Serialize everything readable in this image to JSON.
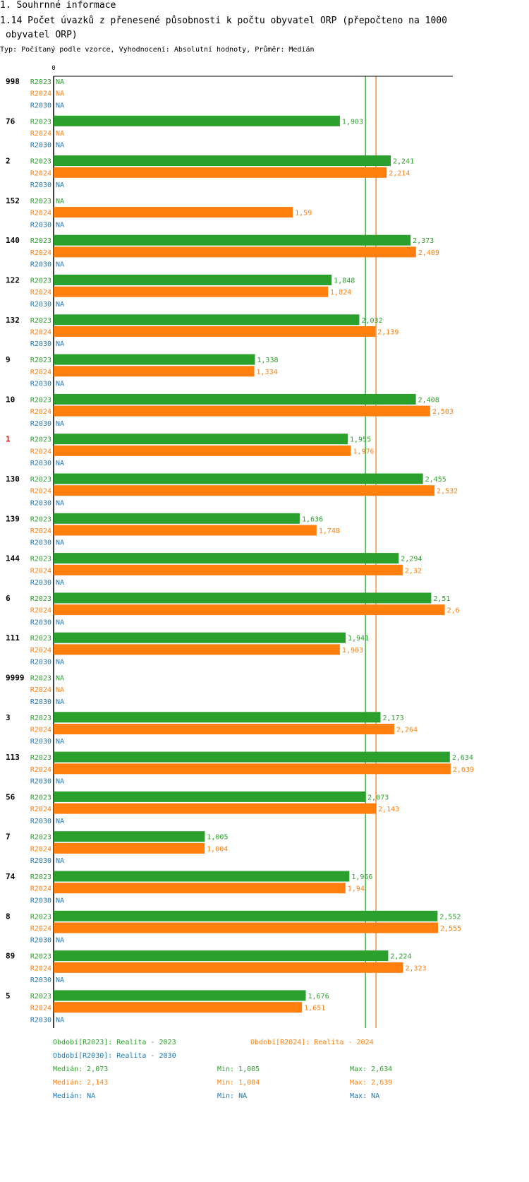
{
  "header": {
    "section_title": "1. Souhrnné informace",
    "chart_title_line1": "1.14 Počet úvazků z přenesené působnosti k počtu obyvatel ORP (přepočteno na 1000",
    "chart_title_line2": "obyvatel ORP)",
    "subtitle": "Typ: Počítaný podle vzorce, Vyhodnocení: Absolutní hodnoty, Průměr: Medián"
  },
  "colors": {
    "R2023": "#2ca02c",
    "R2024": "#ff7f0e",
    "R2030": "#1f77b4",
    "highlight_group": "#ff0000",
    "axis": "#000000"
  },
  "chart_data": {
    "type": "bar",
    "orientation": "horizontal",
    "x_tick_label": "0",
    "xlim": [
      0,
      2.85
    ],
    "na_label": "NA",
    "series_names": [
      "R2023",
      "R2024",
      "R2030"
    ],
    "highlighted_group": "1",
    "reference_lines": [
      {
        "series": "R2023",
        "label": "Medián",
        "value": 2.073
      },
      {
        "series": "R2024",
        "label": "Medián",
        "value": 2.143
      }
    ],
    "groups": [
      {
        "label": "998",
        "values": [
          null,
          null,
          null
        ],
        "labels": [
          "NA",
          "NA",
          "NA"
        ]
      },
      {
        "label": "76",
        "values": [
          1.903,
          null,
          null
        ],
        "labels": [
          "1,903",
          "NA",
          "NA"
        ]
      },
      {
        "label": "2",
        "values": [
          2.241,
          2.214,
          null
        ],
        "labels": [
          "2,241",
          "2,214",
          "NA"
        ]
      },
      {
        "label": "152",
        "values": [
          null,
          1.59,
          null
        ],
        "labels": [
          "NA",
          "1,59",
          "NA"
        ]
      },
      {
        "label": "140",
        "values": [
          2.373,
          2.409,
          null
        ],
        "labels": [
          "2,373",
          "2,409",
          "NA"
        ]
      },
      {
        "label": "122",
        "values": [
          1.848,
          1.824,
          null
        ],
        "labels": [
          "1,848",
          "1,824",
          "NA"
        ]
      },
      {
        "label": "132",
        "values": [
          2.032,
          2.139,
          null
        ],
        "labels": [
          "2,032",
          "2,139",
          "NA"
        ]
      },
      {
        "label": "9",
        "values": [
          1.338,
          1.334,
          null
        ],
        "labels": [
          "1,338",
          "1,334",
          "NA"
        ]
      },
      {
        "label": "10",
        "values": [
          2.408,
          2.503,
          null
        ],
        "labels": [
          "2,408",
          "2,503",
          "NA"
        ]
      },
      {
        "label": "1",
        "values": [
          1.955,
          1.976,
          null
        ],
        "labels": [
          "1,955",
          "1,976",
          "NA"
        ]
      },
      {
        "label": "130",
        "values": [
          2.455,
          2.532,
          null
        ],
        "labels": [
          "2,455",
          "2,532",
          "NA"
        ]
      },
      {
        "label": "139",
        "values": [
          1.636,
          1.748,
          null
        ],
        "labels": [
          "1,636",
          "1,748",
          "NA"
        ]
      },
      {
        "label": "144",
        "values": [
          2.294,
          2.32,
          null
        ],
        "labels": [
          "2,294",
          "2,32",
          "NA"
        ]
      },
      {
        "label": "6",
        "values": [
          2.51,
          2.6,
          null
        ],
        "labels": [
          "2,51",
          "2,6",
          "NA"
        ]
      },
      {
        "label": "111",
        "values": [
          1.941,
          1.903,
          null
        ],
        "labels": [
          "1,941",
          "1,903",
          "NA"
        ]
      },
      {
        "label": "9999",
        "values": [
          null,
          null,
          null
        ],
        "labels": [
          "NA",
          "NA",
          "NA"
        ]
      },
      {
        "label": "3",
        "values": [
          2.173,
          2.264,
          null
        ],
        "labels": [
          "2,173",
          "2,264",
          "NA"
        ]
      },
      {
        "label": "113",
        "values": [
          2.634,
          2.639,
          null
        ],
        "labels": [
          "2,634",
          "2,639",
          "NA"
        ]
      },
      {
        "label": "56",
        "values": [
          2.073,
          2.143,
          null
        ],
        "labels": [
          "2,073",
          "2,143",
          "NA"
        ]
      },
      {
        "label": "7",
        "values": [
          1.005,
          1.004,
          null
        ],
        "labels": [
          "1,005",
          "1,004",
          "NA"
        ]
      },
      {
        "label": "74",
        "values": [
          1.966,
          1.94,
          null
        ],
        "labels": [
          "1,966",
          "1,94",
          "NA"
        ]
      },
      {
        "label": "8",
        "values": [
          2.552,
          2.555,
          null
        ],
        "labels": [
          "2,552",
          "2,555",
          "NA"
        ]
      },
      {
        "label": "89",
        "values": [
          2.224,
          2.323,
          null
        ],
        "labels": [
          "2,224",
          "2,323",
          "NA"
        ]
      },
      {
        "label": "5",
        "values": [
          1.676,
          1.651,
          null
        ],
        "labels": [
          "1,676",
          "1,651",
          "NA"
        ]
      }
    ]
  },
  "legend": {
    "period_r2023": "Období[R2023]: Realita - 2023",
    "period_r2024": "Období[R2024]: Realita - 2024",
    "period_r2030": "Období[R2030]: Realita - 2030",
    "stats": [
      {
        "median": "Medián: 2,073",
        "min": "Min: 1,005",
        "max": "Max: 2,634"
      },
      {
        "median": "Medián: 2,143",
        "min": "Min: 1,004",
        "max": "Max: 2,639"
      },
      {
        "median": "Medián: NA",
        "min": "Min: NA",
        "max": "Max: NA"
      }
    ]
  }
}
